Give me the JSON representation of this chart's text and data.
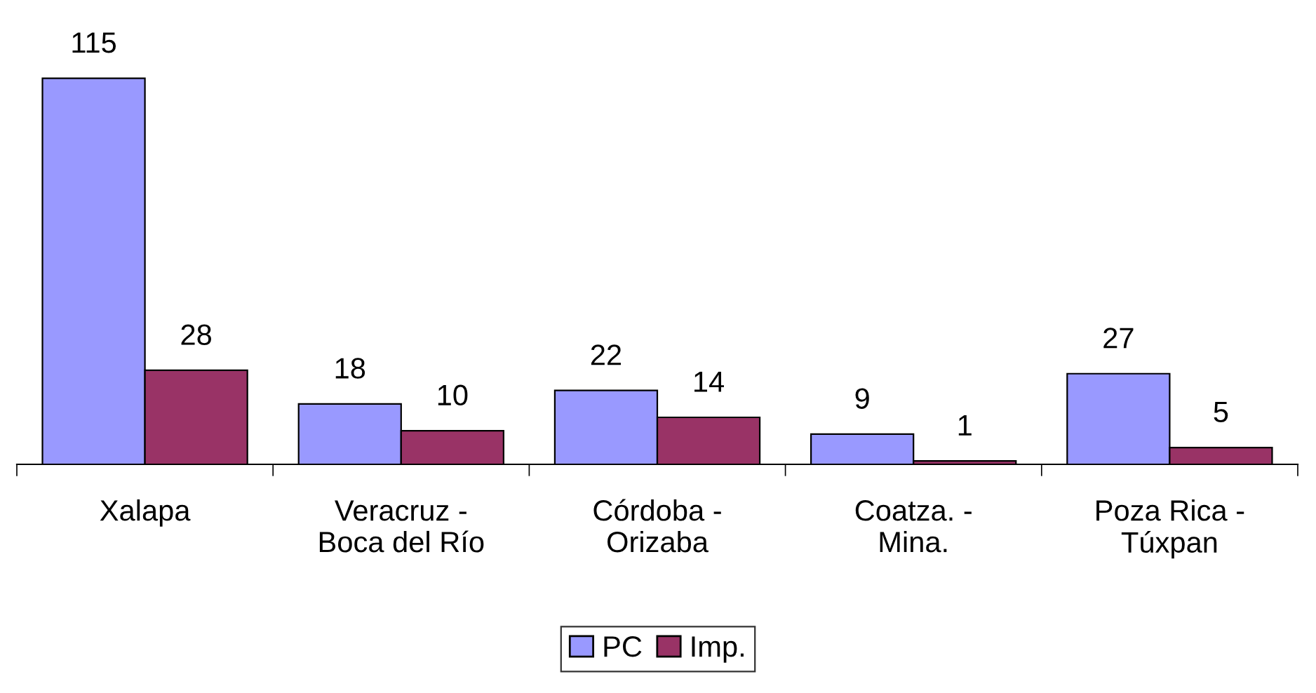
{
  "chart_data": {
    "type": "bar",
    "categories": [
      "Xalapa",
      "Veracruz -\nBoca del Río",
      "Córdoba -\nOrizaba",
      "Coatza. -\nMina.",
      "Poza Rica -\nTúxpan"
    ],
    "series": [
      {
        "name": "PC",
        "color": "#9999ff",
        "values": [
          115,
          18,
          22,
          9,
          27
        ]
      },
      {
        "name": "Imp.",
        "color": "#993366",
        "values": [
          28,
          10,
          14,
          1,
          5
        ]
      }
    ],
    "data_labels": true,
    "legend": "bottom",
    "grid": false
  }
}
